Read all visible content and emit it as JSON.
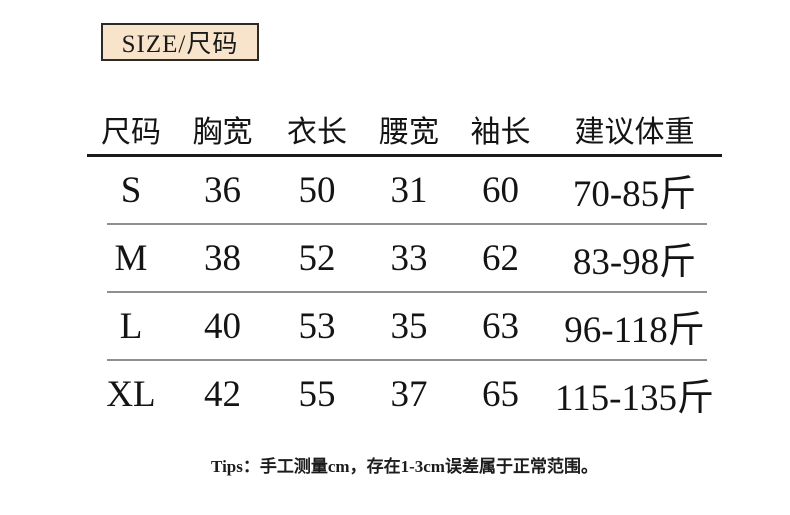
{
  "badge": {
    "label": "SIZE/尺码"
  },
  "table": {
    "headers": [
      "尺码",
      "胸宽",
      "衣长",
      "腰宽",
      "袖长",
      "建议体重"
    ],
    "rows": [
      {
        "cells": [
          "S",
          "36",
          "50",
          "31",
          "60",
          "70-85斤"
        ]
      },
      {
        "cells": [
          "M",
          "38",
          "52",
          "33",
          "62",
          "83-98斤"
        ]
      },
      {
        "cells": [
          "L",
          "40",
          "53",
          "35",
          "63",
          "96-118斤"
        ]
      },
      {
        "cells": [
          "XL",
          "42",
          "55",
          "37",
          "65",
          "115-135斤"
        ]
      }
    ]
  },
  "tips": "Tips：手工测量cm，存在1-3cm误差属于正常范围。",
  "colors": {
    "badge_bg": "#f8e3cb",
    "badge_border": "#2e2a26",
    "header_rule": "#1a1a1a",
    "row_rule": "#8f8f8f",
    "text": "#141414"
  }
}
